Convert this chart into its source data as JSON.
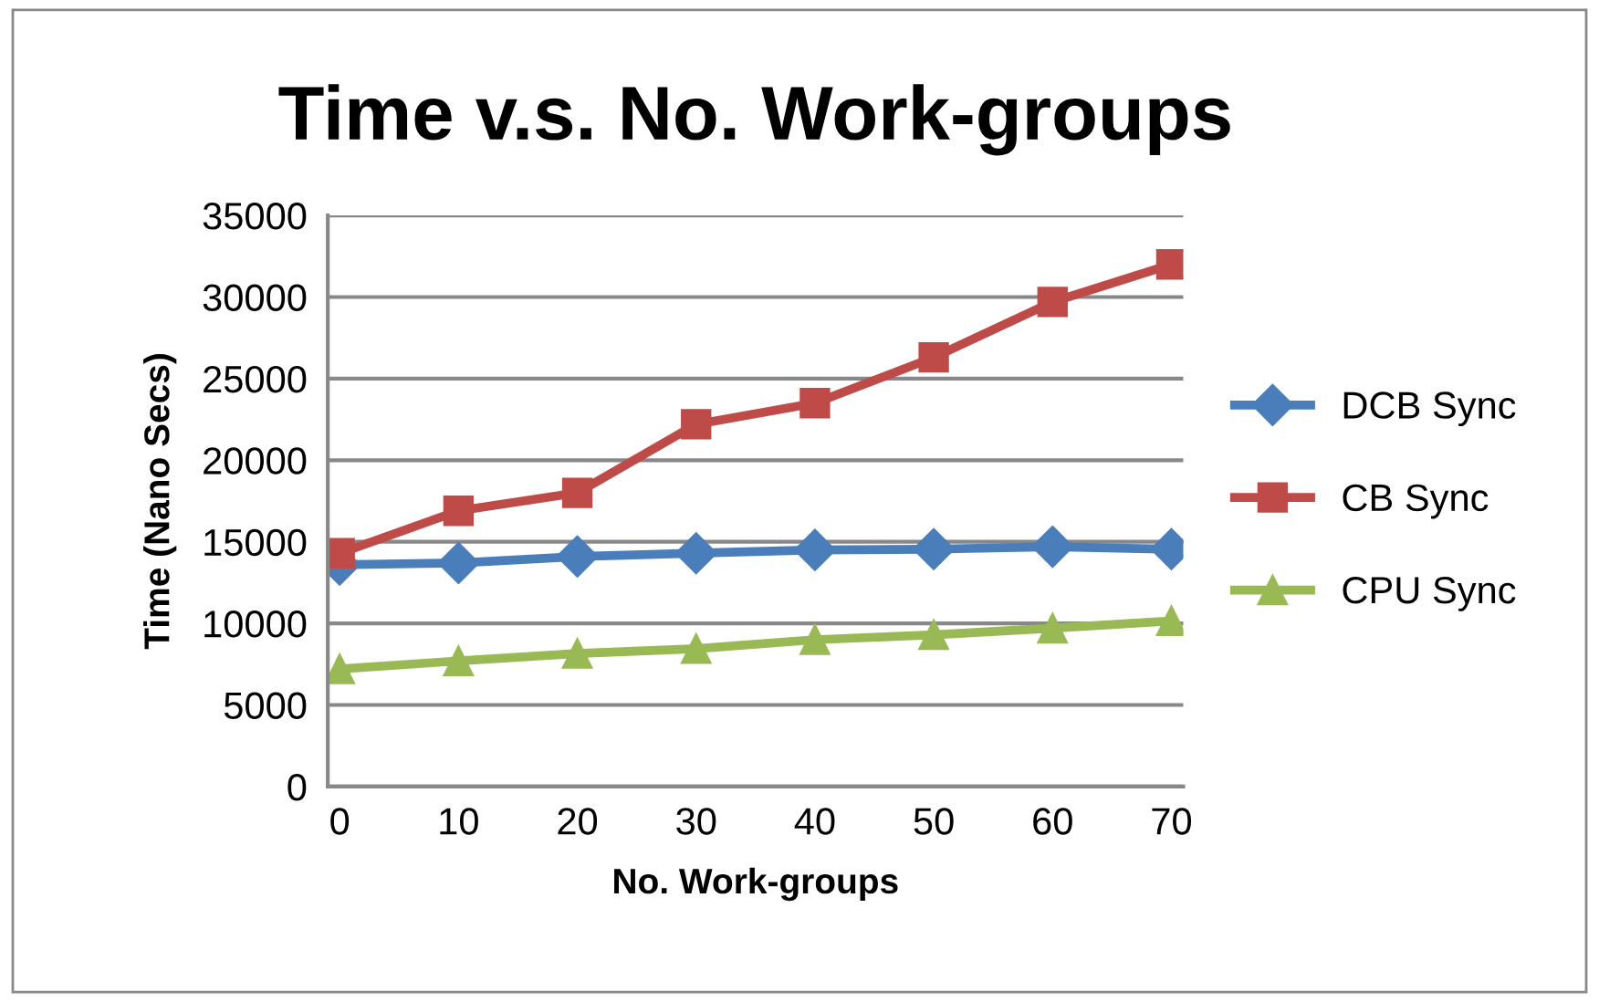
{
  "chart_data": {
    "type": "line",
    "title": "Time v.s. No. Work-groups",
    "xlabel": "No. Work-groups",
    "ylabel": "Time (Nano Secs)",
    "categories": [
      "0",
      "10",
      "20",
      "30",
      "40",
      "50",
      "60",
      "70"
    ],
    "series": [
      {
        "name": "DCB Sync",
        "color": "#4a7ebb",
        "marker": "diamond",
        "values": [
          13600,
          13700,
          14100,
          14300,
          14500,
          14550,
          14700,
          14550
        ]
      },
      {
        "name": "CB Sync",
        "color": "#be4b48",
        "marker": "square",
        "values": [
          14300,
          16900,
          18000,
          22200,
          23500,
          26300,
          29700,
          32000
        ]
      },
      {
        "name": "CPU Sync",
        "color": "#98b954",
        "marker": "triangle",
        "values": [
          7200,
          7700,
          8150,
          8450,
          9000,
          9300,
          9700,
          10150
        ]
      }
    ],
    "ylim": [
      0,
      35000
    ],
    "yticks": [
      0,
      5000,
      10000,
      15000,
      20000,
      25000,
      30000,
      35000
    ],
    "grid": "y",
    "legend": "right",
    "line_style": "solid"
  }
}
